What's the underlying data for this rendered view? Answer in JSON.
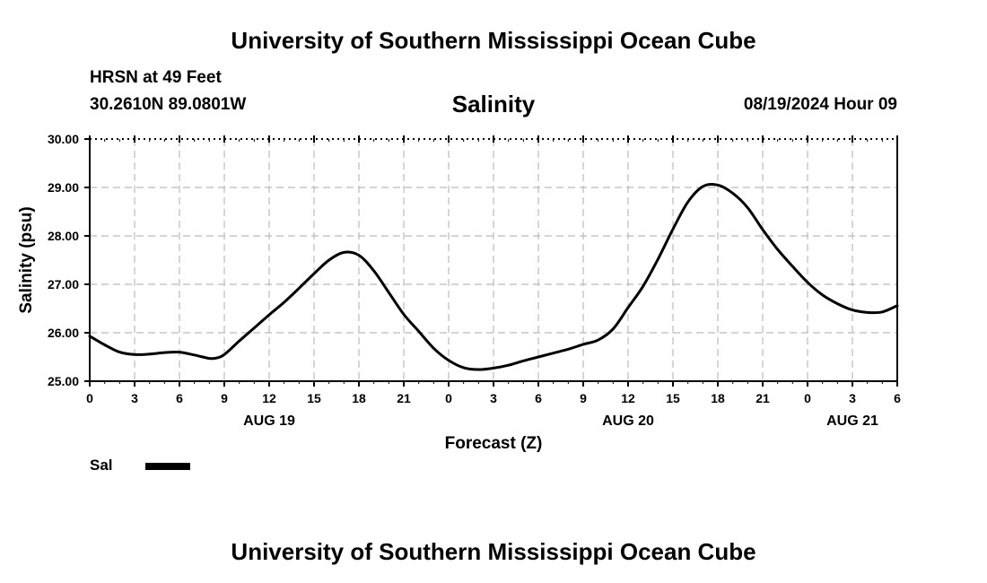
{
  "header": {
    "top_title": "University of Southern Mississippi Ocean Cube",
    "station": "HRSN at 49 Feet",
    "coords": "30.2610N  89.0801W",
    "plot_title": "Salinity",
    "timestamp": "08/19/2024 Hour 09"
  },
  "legend": {
    "label": "Sal"
  },
  "footer": {
    "bottom_title": "University of Southern Mississippi Ocean Cube"
  },
  "chart_data": {
    "type": "line",
    "title": "Salinity",
    "xlabel": "Forecast (Z)",
    "ylabel": "Salinity (psu)",
    "xlim": [
      0,
      54
    ],
    "ylim": [
      25.0,
      30.0
    ],
    "grid": true,
    "legend_position": "bottom-left",
    "y_ticks": [
      "25.00",
      "26.00",
      "27.00",
      "28.00",
      "29.00",
      "30.00"
    ],
    "x_tick_labels": [
      "0",
      "3",
      "6",
      "9",
      "12",
      "15",
      "18",
      "21",
      "0",
      "3",
      "6",
      "9",
      "12",
      "15",
      "18",
      "21",
      "0",
      "3",
      "6"
    ],
    "date_labels": [
      {
        "hour": 12,
        "label": "AUG 19"
      },
      {
        "hour": 36,
        "label": "AUG 20"
      },
      {
        "hour": 51,
        "label": "AUG 21"
      }
    ],
    "series": [
      {
        "name": "Sal",
        "color": "#000000",
        "x": [
          0,
          1,
          2,
          3,
          4,
          5,
          6,
          7,
          8,
          8.5,
          9,
          10,
          11,
          12,
          13,
          14,
          15,
          16,
          17,
          18,
          19,
          20,
          21,
          22,
          23,
          24,
          25,
          26,
          27,
          28,
          29,
          30,
          31,
          32,
          33,
          34,
          35,
          36,
          37,
          38,
          39,
          40,
          41,
          42,
          43,
          44,
          45,
          46,
          47,
          48,
          49,
          50,
          51,
          52,
          53,
          54
        ],
        "values": [
          25.93,
          25.75,
          25.6,
          25.55,
          25.56,
          25.59,
          25.6,
          25.54,
          25.47,
          25.48,
          25.55,
          25.83,
          26.1,
          26.37,
          26.63,
          26.92,
          27.22,
          27.5,
          27.66,
          27.6,
          27.28,
          26.83,
          26.38,
          26.03,
          25.68,
          25.43,
          25.28,
          25.24,
          25.27,
          25.33,
          25.42,
          25.5,
          25.58,
          25.66,
          25.76,
          25.85,
          26.08,
          26.52,
          26.96,
          27.52,
          28.14,
          28.7,
          29.02,
          29.05,
          28.88,
          28.58,
          28.13,
          27.72,
          27.37,
          27.04,
          26.78,
          26.6,
          26.47,
          26.42,
          26.43,
          26.56
        ]
      }
    ]
  }
}
